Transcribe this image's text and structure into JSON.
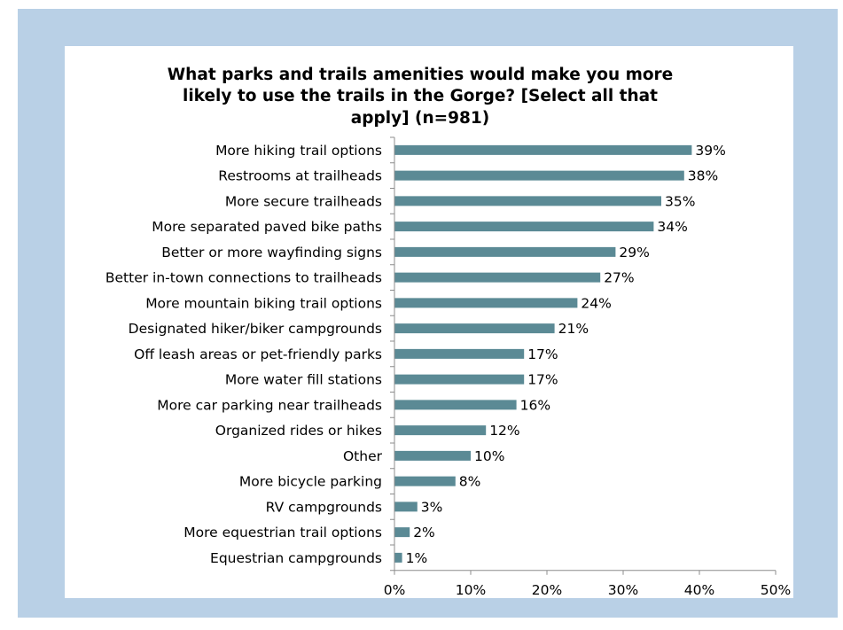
{
  "chart_data": {
    "type": "bar",
    "orientation": "horizontal",
    "title_lines": [
      "What parks and trails amenities would make you more",
      "likely to use the trails in the Gorge? [Select all that",
      "apply] (n=981)"
    ],
    "categories": [
      "More hiking trail options",
      "Restrooms at trailheads",
      "More secure trailheads",
      "More separated paved bike paths",
      "Better or more wayfinding signs",
      "Better in-town connections to trailheads",
      "More mountain biking trail options",
      "Designated hiker/biker campgrounds",
      "Off leash areas or pet-friendly parks",
      "More water fill stations",
      "More car parking near trailheads",
      "Organized rides or hikes",
      "Other",
      "More bicycle parking",
      "RV campgrounds",
      "More equestrian trail options",
      "Equestrian campgrounds"
    ],
    "values": [
      39,
      38,
      35,
      34,
      29,
      27,
      24,
      21,
      17,
      17,
      16,
      12,
      10,
      8,
      3,
      2,
      1
    ],
    "value_labels": [
      "39%",
      "38%",
      "35%",
      "34%",
      "29%",
      "27%",
      "24%",
      "21%",
      "17%",
      "17%",
      "16%",
      "12%",
      "10%",
      "8%",
      "3%",
      "2%",
      "1%"
    ],
    "xlim": [
      0,
      50
    ],
    "xticks": [
      0,
      10,
      20,
      30,
      40,
      50
    ],
    "xtick_labels": [
      "0%",
      "10%",
      "20%",
      "30%",
      "40%",
      "50%"
    ],
    "xlabel": "",
    "ylabel": "",
    "grid": false,
    "legend": "none",
    "colors": {
      "bar": "#5b8a95",
      "axis": "#8c8c8c",
      "frame_background": "#b9d0e6",
      "plot_background": "#ffffff"
    }
  }
}
